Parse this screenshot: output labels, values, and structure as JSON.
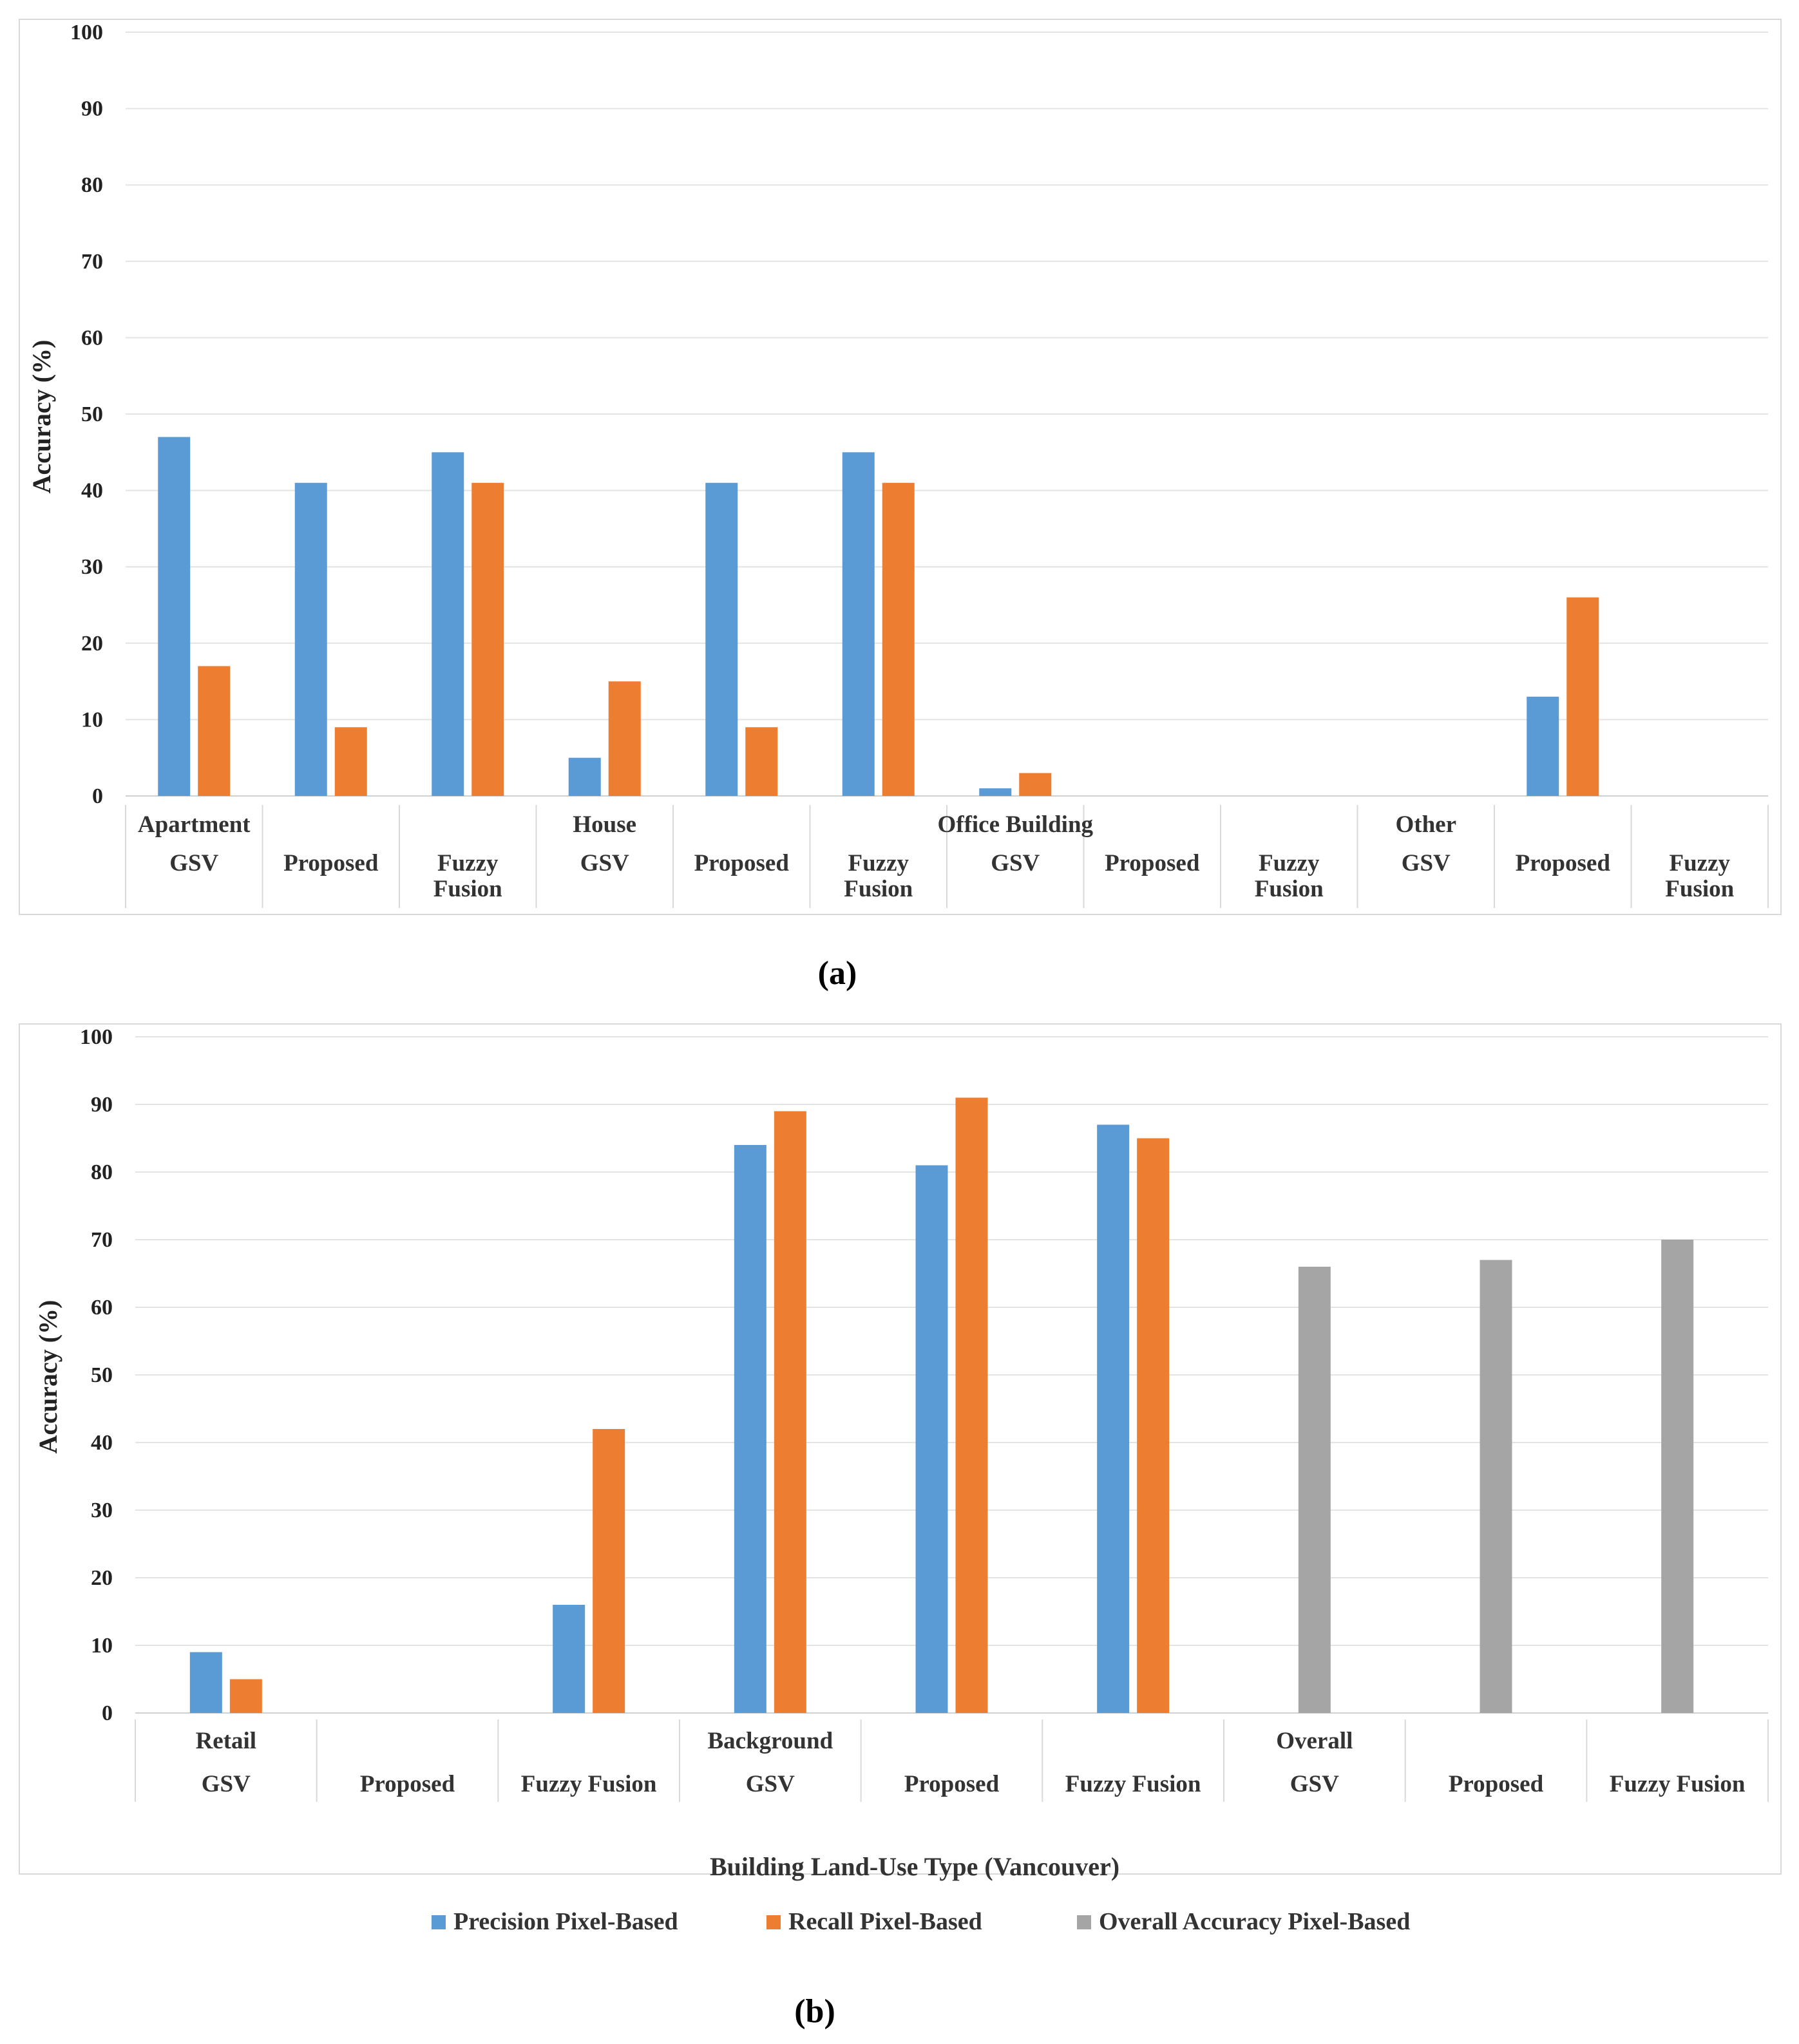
{
  "colors": {
    "precision": "#5B9BD5",
    "recall": "#ED7D31",
    "overall": "#A5A5A5",
    "gridline": "#E4E4E4",
    "border": "#D9D9D9"
  },
  "chart_data": [
    {
      "caption": "(a)",
      "type": "bar",
      "title": "",
      "ylabel": "Accuracy (%)",
      "xlabel": "",
      "ylim": [
        0,
        100
      ],
      "yticks": [
        "0",
        "10",
        "20",
        "30",
        "40",
        "50",
        "60",
        "70",
        "80",
        "90",
        "100"
      ],
      "groups": [
        {
          "label": "Apartment",
          "categories": [
            "GSV",
            "Proposed",
            "Fuzzy Fusion"
          ]
        },
        {
          "label": "House",
          "categories": [
            "GSV",
            "Proposed",
            "Fuzzy Fusion"
          ]
        },
        {
          "label": "Office Building",
          "categories": [
            "GSV",
            "Proposed",
            "Fuzzy Fusion"
          ]
        },
        {
          "label": "Other",
          "categories": [
            "GSV",
            "Proposed",
            "Fuzzy Fusion"
          ]
        }
      ],
      "series": [
        {
          "name": "Precision Pixel-Based",
          "color_key": "precision",
          "values": [
            47,
            41,
            45,
            5,
            41,
            45,
            1,
            0,
            0,
            0,
            13,
            0
          ]
        },
        {
          "name": "Recall Pixel-Based",
          "color_key": "recall",
          "values": [
            17,
            9,
            41,
            15,
            9,
            41,
            3,
            0,
            0,
            0,
            26,
            0
          ]
        }
      ]
    },
    {
      "caption": "(b)",
      "type": "bar",
      "title": "",
      "ylabel": "Accuracy (%)",
      "xlabel": "Building Land-Use Type (Vancouver)",
      "ylim": [
        0,
        100
      ],
      "yticks": [
        "0",
        "10",
        "20",
        "30",
        "40",
        "50",
        "60",
        "70",
        "80",
        "90",
        "100"
      ],
      "groups": [
        {
          "label": "Retail",
          "categories": [
            "GSV",
            "Proposed",
            "Fuzzy Fusion"
          ]
        },
        {
          "label": "Background",
          "categories": [
            "GSV",
            "Proposed",
            "Fuzzy Fusion"
          ]
        },
        {
          "label": "Overall",
          "categories": [
            "GSV",
            "Proposed",
            "Fuzzy Fusion"
          ]
        }
      ],
      "series": [
        {
          "name": "Precision Pixel-Based",
          "color_key": "precision",
          "values": [
            9,
            0,
            16,
            84,
            81,
            87,
            0,
            0,
            0
          ]
        },
        {
          "name": "Recall Pixel-Based",
          "color_key": "recall",
          "values": [
            5,
            0,
            42,
            89,
            91,
            85,
            0,
            0,
            0
          ]
        },
        {
          "name": "Overall Accuracy Pixel-Based",
          "color_key": "overall",
          "values": [
            0,
            0,
            0,
            0,
            0,
            0,
            66,
            67,
            70
          ]
        }
      ],
      "legend": {
        "position": "bottom-center",
        "entries": [
          "Precision Pixel-Based",
          "Recall Pixel-Based",
          "Overall Accuracy Pixel-Based"
        ]
      }
    }
  ]
}
